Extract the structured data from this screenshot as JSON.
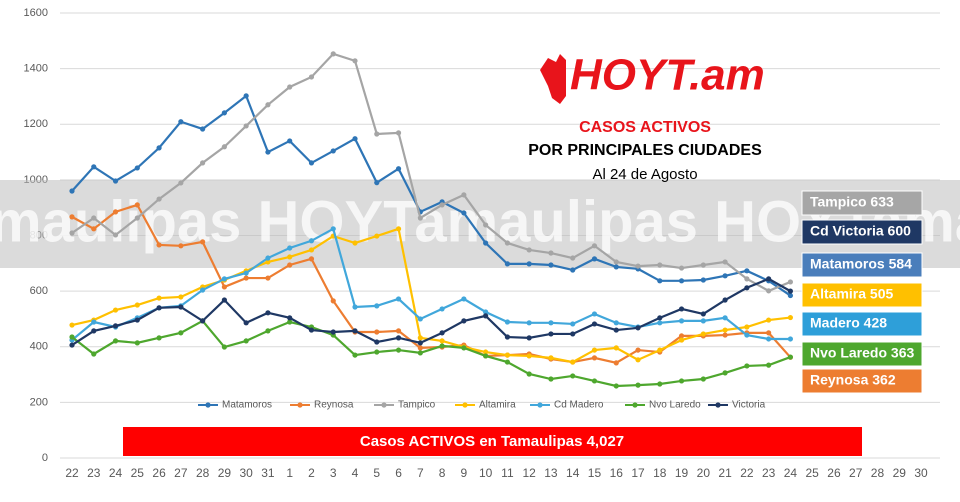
{
  "chart_data": {
    "type": "line",
    "logo": "HOYT.am",
    "title": "CASOS ACTIVOS",
    "subtitle": "POR PRINCIPALES CIUDADES",
    "date": "Al 24 de Agosto",
    "watermark": "maulipas HOYTamaulipas HOYTamaulipas HOYTama",
    "banner": "Casos ACTIVOS en Tamaulipas 4,027",
    "ylim": [
      0,
      1600
    ],
    "yticks": [
      0,
      200,
      400,
      600,
      800,
      1000,
      1200,
      1400,
      1600
    ],
    "grid": true,
    "legend": "bottom",
    "categories": [
      "22",
      "23",
      "24",
      "25",
      "26",
      "27",
      "28",
      "29",
      "30",
      "31",
      "1",
      "2",
      "3",
      "4",
      "5",
      "6",
      "7",
      "8",
      "9",
      "10",
      "11",
      "12",
      "13",
      "14",
      "15",
      "16",
      "17",
      "18",
      "19",
      "20",
      "21",
      "22",
      "23",
      "24",
      "25",
      "26",
      "27",
      "28",
      "29",
      "30"
    ],
    "series": [
      {
        "name": "Matamoros",
        "color": "#2e75b6",
        "values": [
          960,
          1047,
          996,
          1043,
          1115,
          1209,
          1183,
          1241,
          1302,
          1100,
          1140,
          1061,
          1104,
          1148,
          990,
          1040,
          885,
          921,
          881,
          773,
          698,
          698,
          694,
          676,
          716,
          687,
          680,
          637,
          637,
          640,
          655,
          673,
          637,
          584,
          null,
          null,
          null,
          null,
          null,
          null
        ]
      },
      {
        "name": "Reynosa",
        "color": "#ed7d31",
        "values": [
          867,
          824,
          885,
          910,
          766,
          763,
          777,
          615,
          647,
          647,
          694,
          716,
          565,
          453,
          453,
          457,
          396,
          399,
          406,
          367,
          370,
          374,
          356,
          345,
          360,
          342,
          388,
          381,
          439,
          439,
          442,
          450,
          450,
          362,
          null,
          null,
          null,
          null,
          null,
          null
        ]
      },
      {
        "name": "Tampico",
        "color": "#a5a5a5",
        "values": [
          809,
          863,
          802,
          863,
          931,
          989,
          1061,
          1119,
          1194,
          1270,
          1334,
          1370,
          1453,
          1428,
          1165,
          1169,
          863,
          910,
          946,
          838,
          773,
          748,
          737,
          719,
          763,
          705,
          690,
          694,
          683,
          694,
          705,
          644,
          601,
          633,
          null,
          null,
          null,
          null,
          null,
          null
        ]
      },
      {
        "name": "Altamira",
        "color": "#ffc000",
        "values": [
          478,
          496,
          532,
          550,
          575,
          579,
          615,
          640,
          673,
          705,
          723,
          748,
          798,
          773,
          798,
          824,
          432,
          421,
          399,
          381,
          370,
          367,
          360,
          345,
          388,
          396,
          353,
          388,
          424,
          446,
          460,
          471,
          496,
          505,
          null,
          null,
          null,
          null,
          null,
          null
        ]
      },
      {
        "name": "Cd Madero",
        "color": "#41a7db",
        "values": [
          424,
          489,
          471,
          504,
          540,
          547,
          604,
          644,
          665,
          719,
          755,
          781,
          824,
          543,
          547,
          572,
          500,
          536,
          572,
          525,
          489,
          486,
          486,
          482,
          518,
          486,
          471,
          486,
          493,
          493,
          504,
          442,
          428,
          428,
          null,
          null,
          null,
          null,
          null,
          null
        ]
      },
      {
        "name": "Nvo Laredo",
        "color": "#4ea72e",
        "values": [
          435,
          374,
          421,
          414,
          432,
          450,
          493,
          399,
          421,
          457,
          489,
          471,
          442,
          370,
          381,
          388,
          378,
          403,
          396,
          367,
          345,
          302,
          284,
          295,
          277,
          259,
          262,
          266,
          277,
          284,
          306,
          331,
          334,
          363,
          null,
          null,
          null,
          null,
          null,
          null
        ]
      },
      {
        "name": "Victoria",
        "color": "#1f3864",
        "values": [
          406,
          457,
          475,
          496,
          540,
          543,
          493,
          568,
          486,
          522,
          504,
          460,
          453,
          457,
          417,
          432,
          414,
          450,
          493,
          511,
          435,
          432,
          446,
          446,
          482,
          460,
          468,
          504,
          536,
          518,
          568,
          612,
          644,
          600,
          null,
          null,
          null,
          null,
          null,
          null
        ]
      }
    ],
    "labels": [
      {
        "text": "Tampico 633",
        "color": "#a6a6a6"
      },
      {
        "text": "Cd Victoria 600",
        "color": "#1f3864"
      },
      {
        "text": "Matamoros 584",
        "color": "#4a7ebb"
      },
      {
        "text": "Altamira 505",
        "color": "#ffc000"
      },
      {
        "text": "Madero 428",
        "color": "#2e9fd9"
      },
      {
        "text": "Nvo Laredo 363",
        "color": "#4ea72e"
      },
      {
        "text": "Reynosa 362",
        "color": "#ed7d31"
      }
    ]
  }
}
